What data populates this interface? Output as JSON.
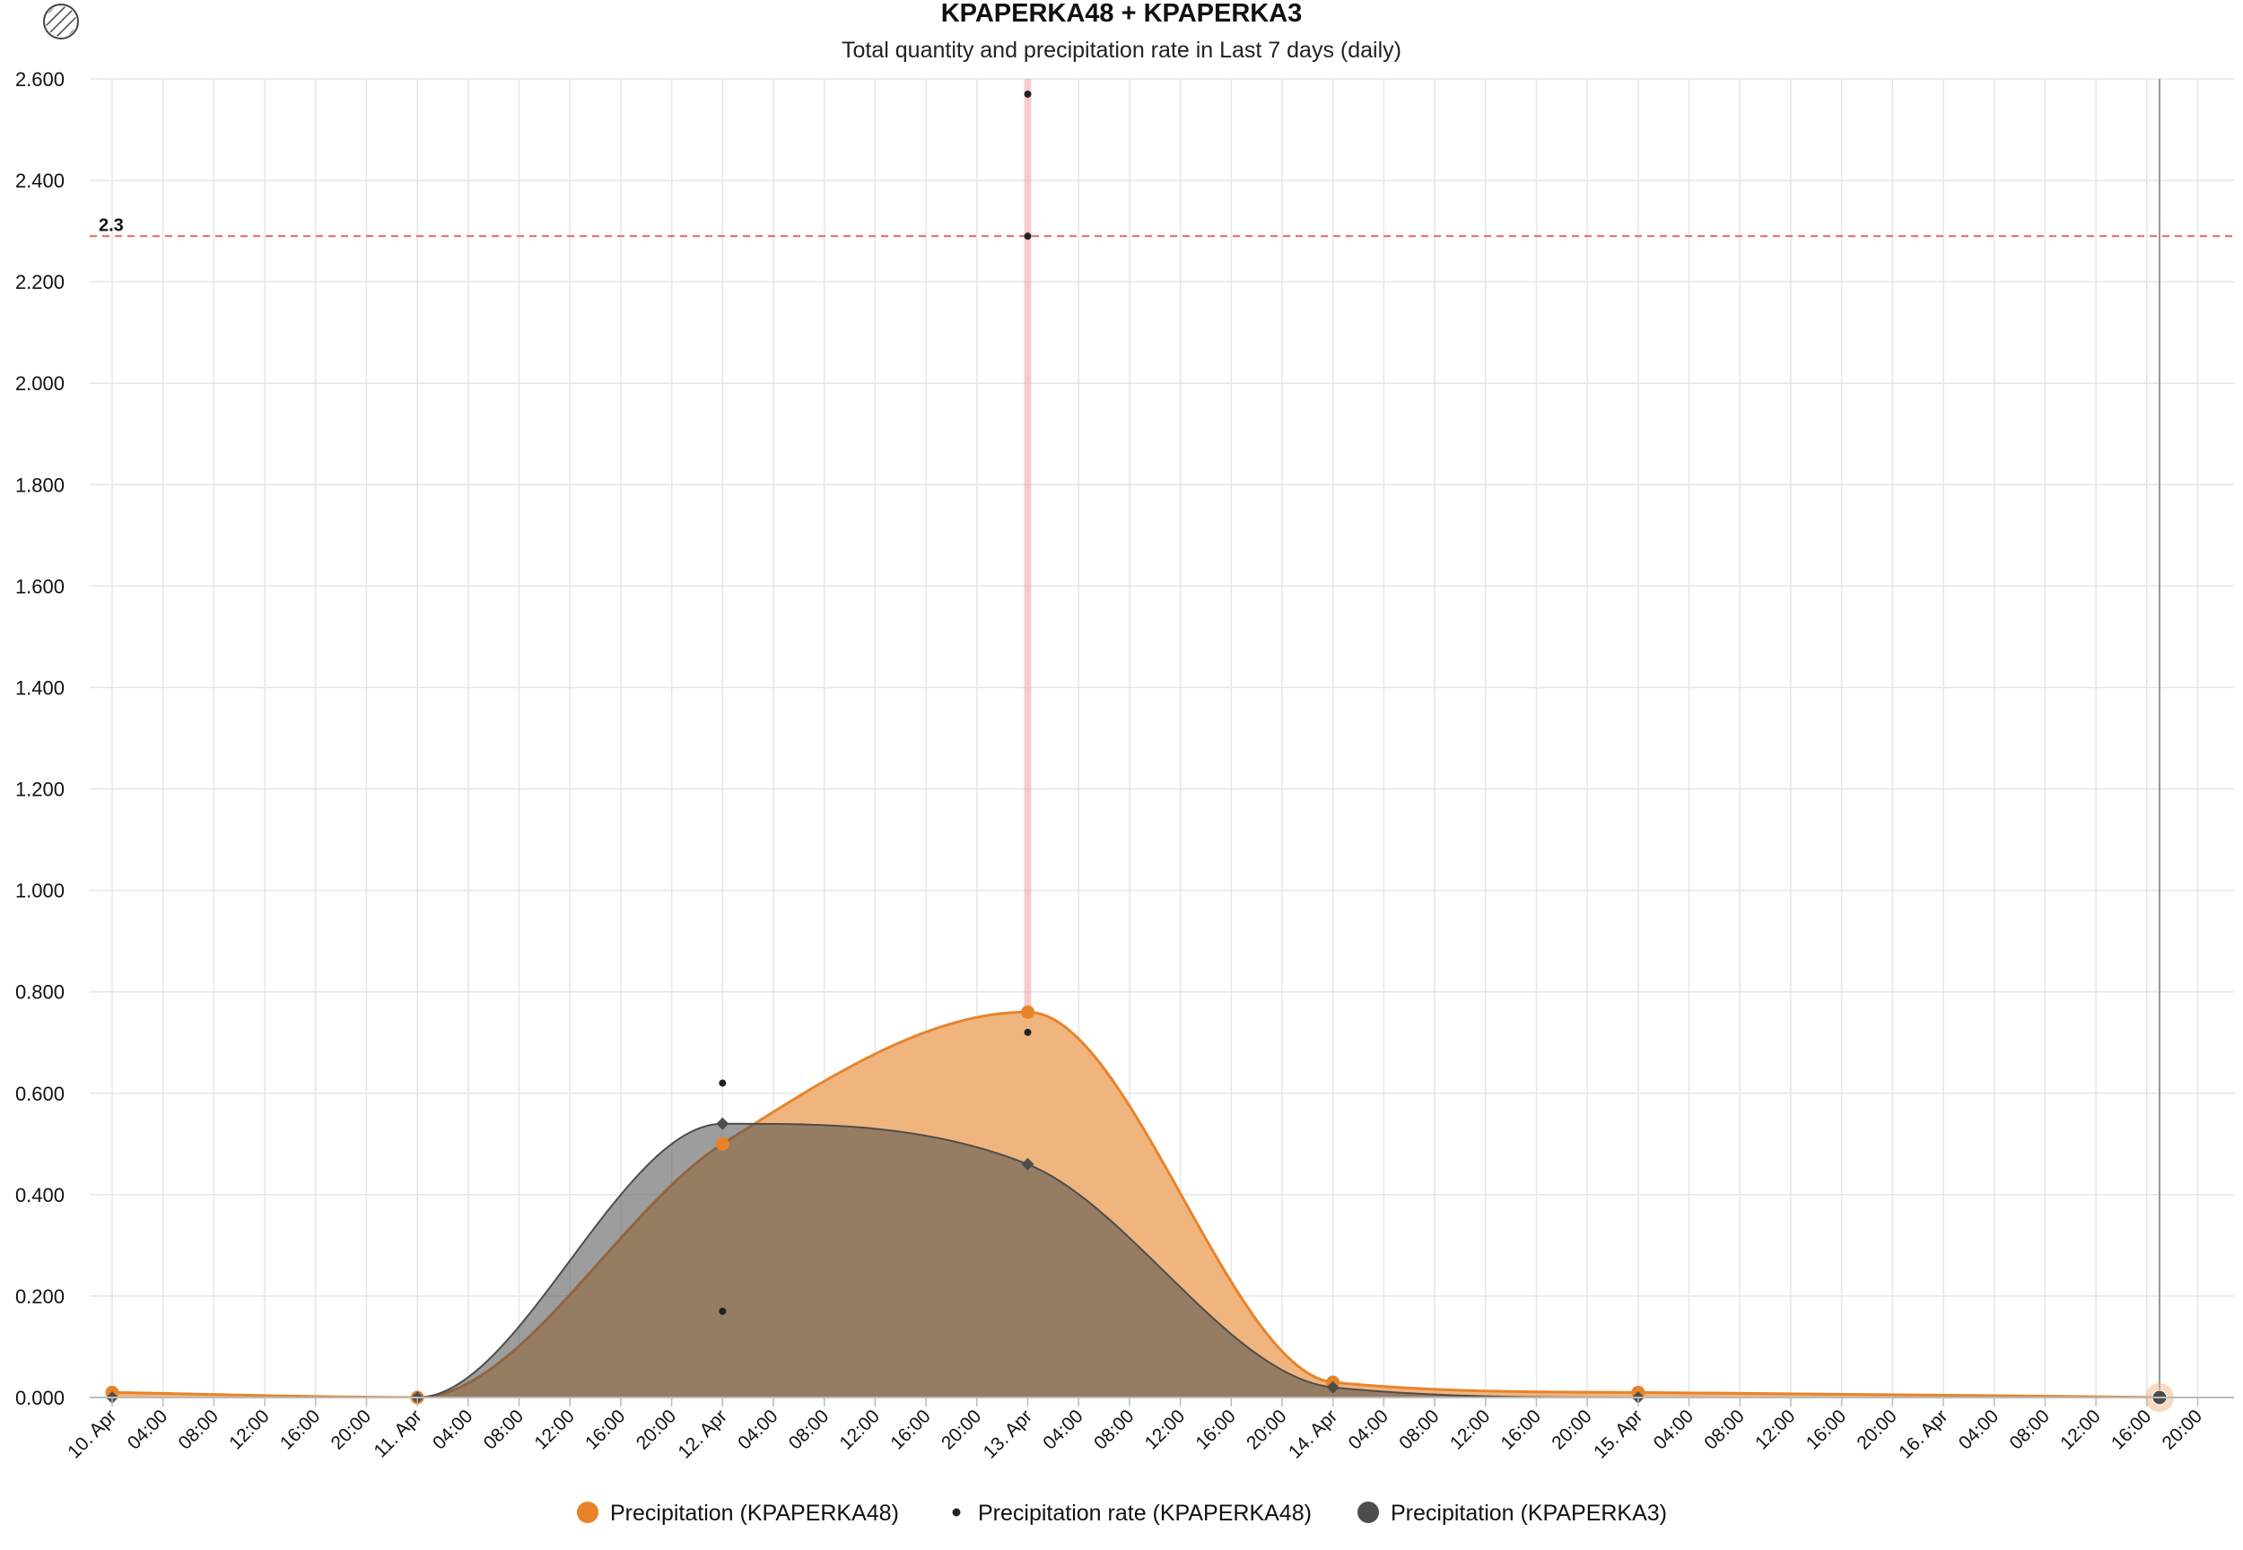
{
  "menu": {
    "icon": "hatched-circle-icon"
  },
  "chart_data": {
    "type": "area",
    "title": "KPAPERKA48 + KPAPERKA3",
    "subtitle": "Total quantity and precipitation rate in Last 7 days (daily)",
    "ylim": [
      0,
      2.6
    ],
    "y_ticks": [
      0,
      0.2,
      0.4,
      0.6,
      0.8,
      1.0,
      1.2,
      1.4,
      1.6,
      1.8,
      2.0,
      2.2,
      2.4,
      2.6
    ],
    "y_tick_labels": [
      "0.000",
      "0.200",
      "0.400",
      "0.600",
      "0.800",
      "1.000",
      "1.200",
      "1.400",
      "1.600",
      "1.800",
      "2.000",
      "2.200",
      "2.400",
      "2.600"
    ],
    "x_start": "2024-04-10 00:00",
    "x_end": "2024-04-16 23:00",
    "x_tick_labels": [
      "10. Apr",
      "04:00",
      "08:00",
      "12:00",
      "16:00",
      "20:00",
      "11. Apr",
      "04:00",
      "08:00",
      "12:00",
      "16:00",
      "20:00",
      "12. Apr",
      "04:00",
      "08:00",
      "12:00",
      "16:00",
      "20:00",
      "13. Apr",
      "04:00",
      "08:00",
      "12:00",
      "16:00",
      "20:00",
      "14. Apr",
      "04:00",
      "08:00",
      "12:00",
      "16:00",
      "20:00",
      "15. Apr",
      "04:00",
      "08:00",
      "12:00",
      "16:00",
      "20:00",
      "16. Apr",
      "04:00",
      "08:00",
      "12:00",
      "16:00",
      "20:00"
    ],
    "grid": true,
    "legend_position": "bottom-center",
    "plot_lines": [
      {
        "axis": "y",
        "value": 2.29,
        "label": "2.3",
        "color": "#e06666",
        "style": "dashed"
      },
      {
        "axis": "x",
        "value": "2024-04-13 00:00",
        "color": "#f4a6a6"
      },
      {
        "axis": "x",
        "value": "2024-04-16 17:00",
        "color": "#999999"
      }
    ],
    "series": [
      {
        "name": "Precipitation (KPAPERKA48)",
        "type": "areaspline",
        "color": "#e8832a",
        "fill": "#f0b57f",
        "marker": "circle",
        "points": [
          {
            "x": "2024-04-10 00:00",
            "y": 0.01
          },
          {
            "x": "2024-04-11 00:00",
            "y": 0.0
          },
          {
            "x": "2024-04-12 00:00",
            "y": 0.5
          },
          {
            "x": "2024-04-13 00:00",
            "y": 0.76
          },
          {
            "x": "2024-04-14 00:00",
            "y": 0.03
          },
          {
            "x": "2024-04-15 00:00",
            "y": 0.01
          },
          {
            "x": "2024-04-16 17:00",
            "y": 0.0
          }
        ]
      },
      {
        "name": "Precipitation rate (KPAPERKA48)",
        "type": "scatter",
        "color": "#222222",
        "marker": "dot",
        "points": [
          {
            "x": "2024-04-12 00:00",
            "y": 0.62
          },
          {
            "x": "2024-04-12 00:00",
            "y": 0.17
          },
          {
            "x": "2024-04-13 00:00",
            "y": 2.57
          },
          {
            "x": "2024-04-13 00:00",
            "y": 2.29
          },
          {
            "x": "2024-04-13 00:00",
            "y": 0.72
          }
        ]
      },
      {
        "name": "Precipitation (KPAPERKA3)",
        "type": "areaspline",
        "color": "#4d4d4d",
        "fill": "rgba(77,77,77,0.55)",
        "marker": "diamond",
        "points": [
          {
            "x": "2024-04-10 00:00",
            "y": 0.0
          },
          {
            "x": "2024-04-11 00:00",
            "y": 0.0
          },
          {
            "x": "2024-04-12 00:00",
            "y": 0.54
          },
          {
            "x": "2024-04-13 00:00",
            "y": 0.46
          },
          {
            "x": "2024-04-14 00:00",
            "y": 0.02
          },
          {
            "x": "2024-04-15 00:00",
            "y": 0.0
          },
          {
            "x": "2024-04-16 17:00",
            "y": 0.0
          }
        ]
      }
    ]
  }
}
